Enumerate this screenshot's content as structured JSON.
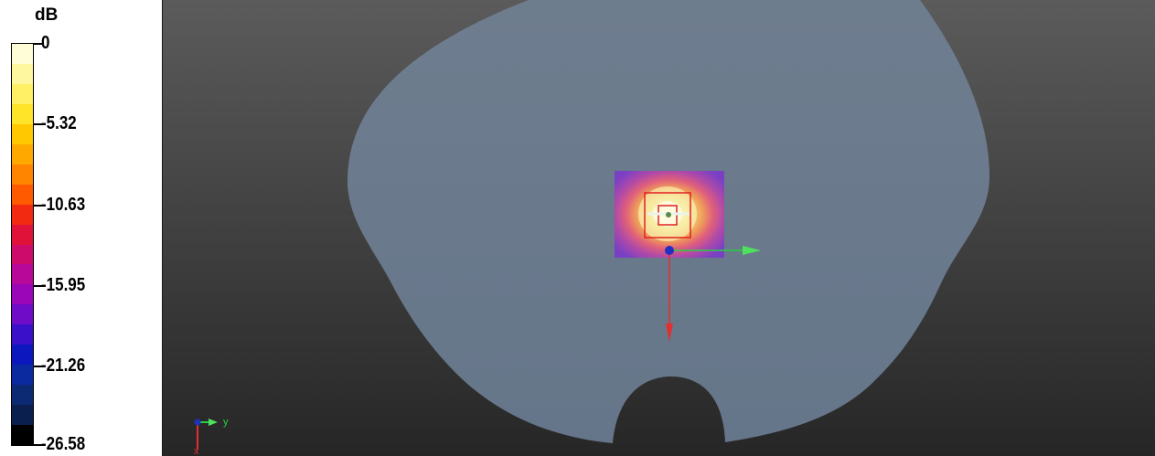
{
  "legend": {
    "unit": "dB",
    "labels": [
      "0",
      "-5.32",
      "-10.63",
      "-15.95",
      "-21.26",
      "-26.58"
    ],
    "colors": [
      "#fffdd8",
      "#fff7a0",
      "#fff066",
      "#ffe42a",
      "#ffc800",
      "#ffa800",
      "#ff8400",
      "#ff5a00",
      "#f22a12",
      "#e0123a",
      "#cc0b6a",
      "#b8089a",
      "#9a06b8",
      "#6e0cc8",
      "#3a10c8",
      "#0c18be",
      "#0c2aa0",
      "#0c2a74",
      "#0a1f4e",
      "#000000"
    ]
  },
  "viewport": {
    "background_top": "#5b5b5b",
    "background_bottom": "#262626",
    "phantom_color": "#6b7a8c",
    "axes": {
      "x_label": "x",
      "y_label": "y",
      "x_color": "#e03030",
      "y_color": "#28d040",
      "z_color": "#2030c0"
    }
  }
}
